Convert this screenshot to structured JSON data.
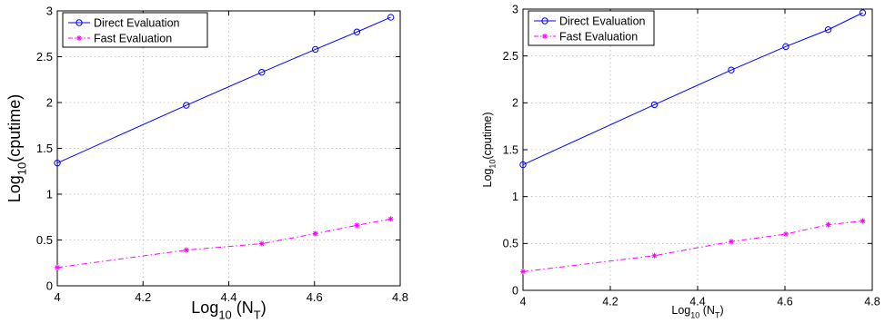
{
  "chart_data": [
    {
      "type": "line",
      "title": "",
      "xlabel": {
        "base": "Log",
        "sub": "10",
        "rest": " (N",
        "sub2": "T",
        "end": ")"
      },
      "ylabel": {
        "base": "Log",
        "sub": "10",
        "rest": "(cputime)"
      },
      "xlim": [
        4,
        4.8
      ],
      "ylim": [
        0,
        3
      ],
      "xticks": [
        "4",
        "4.2",
        "4.4",
        "4.6",
        "4.8"
      ],
      "yticks": [
        "0",
        "0.5",
        "1",
        "1.5",
        "2",
        "2.5",
        "3"
      ],
      "grid": true,
      "legend_position": "top-left",
      "series": [
        {
          "name": "Direct Evaluation",
          "color": "#0000ff",
          "marker": "circle",
          "linestyle": "solid",
          "x": [
            4.0,
            4.301,
            4.477,
            4.602,
            4.699,
            4.778
          ],
          "y": [
            1.34,
            1.97,
            2.33,
            2.58,
            2.77,
            2.93
          ]
        },
        {
          "name": "Fast Evaluation",
          "color": "#ff00ff",
          "marker": "star",
          "linestyle": "dashdot",
          "x": [
            4.0,
            4.301,
            4.477,
            4.602,
            4.699,
            4.778
          ],
          "y": [
            0.2,
            0.39,
            0.46,
            0.57,
            0.66,
            0.73
          ]
        }
      ]
    },
    {
      "type": "line",
      "title": "",
      "xlabel": {
        "base": "Log",
        "sub": "10",
        "rest": " (N",
        "sub2": "T",
        "end": ")"
      },
      "ylabel": {
        "base": "Log",
        "sub": "10",
        "rest": "(cputime)"
      },
      "xlim": [
        4,
        4.8
      ],
      "ylim": [
        0,
        3
      ],
      "xticks": [
        "4",
        "4.2",
        "4.4",
        "4.6",
        "4.8"
      ],
      "yticks": [
        "0",
        "0.5",
        "1",
        "1.5",
        "2",
        "2.5",
        "3"
      ],
      "grid": true,
      "legend_position": "top-left",
      "series": [
        {
          "name": "Direct Evaluation",
          "color": "#0000ff",
          "marker": "circle",
          "linestyle": "solid",
          "x": [
            4.0,
            4.301,
            4.477,
            4.602,
            4.699,
            4.778
          ],
          "y": [
            1.34,
            1.98,
            2.35,
            2.6,
            2.78,
            2.96
          ]
        },
        {
          "name": "Fast Evaluation",
          "color": "#ff00ff",
          "marker": "star",
          "linestyle": "dashdot",
          "x": [
            4.0,
            4.301,
            4.477,
            4.602,
            4.699,
            4.778
          ],
          "y": [
            0.2,
            0.37,
            0.52,
            0.6,
            0.7,
            0.74
          ]
        }
      ]
    }
  ]
}
